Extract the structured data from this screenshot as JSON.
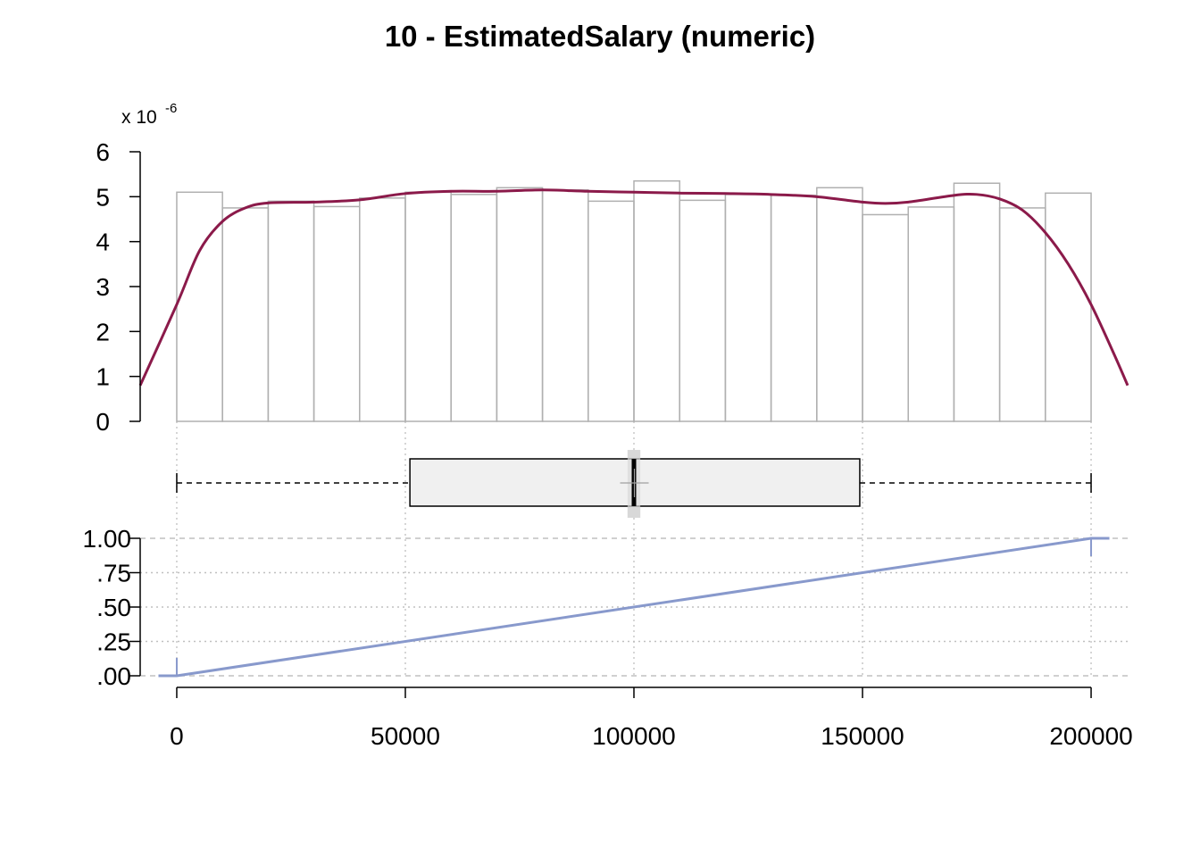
{
  "chart_data": {
    "title": "10 - EstimatedSalary (numeric)",
    "type": "histogram+density+boxplot+ecdf",
    "x_axis": {
      "range": [
        -8000,
        208000
      ],
      "ticks": [
        0,
        50000,
        100000,
        150000,
        200000
      ],
      "tick_labels": [
        "0",
        "50000",
        "100000",
        "150000",
        "200000"
      ],
      "grid": "dotted-vertical"
    },
    "histogram": {
      "y_multiplier_label": "x 10",
      "y_multiplier_exponent": "-6",
      "ylim": [
        0,
        6
      ],
      "y_ticks": [
        0,
        1,
        2,
        3,
        4,
        5,
        6
      ],
      "y_tick_labels": [
        "0",
        "1",
        "2",
        "3",
        "4",
        "5",
        "6"
      ],
      "bin_width": 10000,
      "bin_starts": [
        0,
        10000,
        20000,
        30000,
        40000,
        50000,
        60000,
        70000,
        80000,
        90000,
        100000,
        110000,
        120000,
        130000,
        140000,
        150000,
        160000,
        170000,
        180000,
        190000
      ],
      "values": [
        5.1,
        4.75,
        4.9,
        4.78,
        4.97,
        5.1,
        5.05,
        5.2,
        5.15,
        4.9,
        5.35,
        4.92,
        5.05,
        5.03,
        5.2,
        4.6,
        4.77,
        5.3,
        4.75,
        5.08
      ],
      "bar_color": "#b0b0b0"
    },
    "density": {
      "color": "#8b1a4a",
      "x": [
        -8000,
        0,
        5000,
        10000,
        15000,
        20000,
        30000,
        40000,
        50000,
        60000,
        70000,
        80000,
        90000,
        100000,
        110000,
        120000,
        130000,
        140000,
        150000,
        155000,
        160000,
        170000,
        175000,
        180000,
        185000,
        190000,
        195000,
        200000,
        205000,
        208000
      ],
      "y": [
        0.8,
        2.6,
        3.8,
        4.45,
        4.75,
        4.86,
        4.88,
        4.93,
        5.07,
        5.12,
        5.12,
        5.15,
        5.12,
        5.1,
        5.08,
        5.07,
        5.05,
        5.0,
        4.88,
        4.85,
        4.88,
        5.03,
        5.05,
        4.95,
        4.7,
        4.2,
        3.5,
        2.6,
        1.5,
        0.8
      ]
    },
    "boxplot": {
      "min": 0,
      "q1": 51000,
      "median": 100000,
      "mean": 100100,
      "q3": 149400,
      "max": 200000,
      "box_fill": "#f0f0f0",
      "median_ci": [
        99000,
        101000
      ]
    },
    "ecdf": {
      "color": "#8899cc",
      "ylim": [
        0,
        1
      ],
      "y_ticks": [
        0,
        0.25,
        0.5,
        0.75,
        1
      ],
      "y_tick_labels": [
        ".00",
        ".25",
        ".50",
        ".75",
        "1.00"
      ],
      "x": [
        -4000,
        0,
        200000,
        204000
      ],
      "y": [
        0,
        0,
        1,
        1
      ]
    }
  }
}
